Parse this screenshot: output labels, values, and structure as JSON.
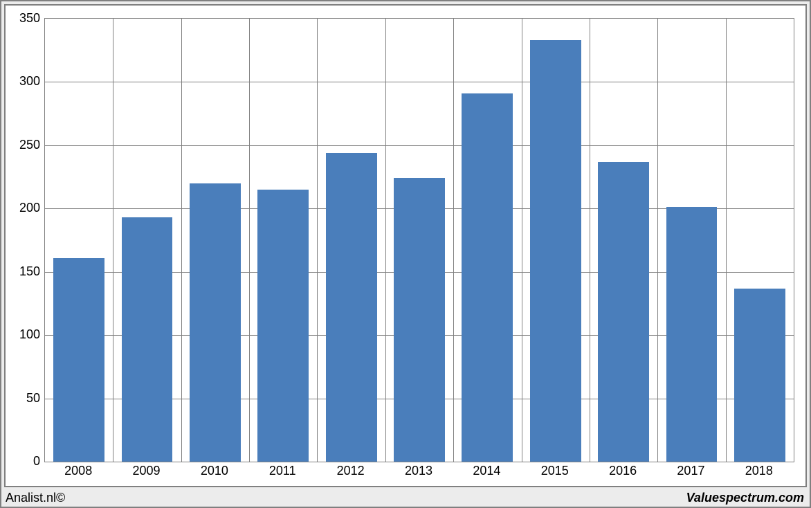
{
  "chart": {
    "type": "bar",
    "categories": [
      "2008",
      "2009",
      "2010",
      "2011",
      "2012",
      "2013",
      "2014",
      "2015",
      "2016",
      "2017",
      "2018"
    ],
    "values": [
      161,
      193,
      220,
      215,
      244,
      224,
      291,
      333,
      237,
      201,
      137
    ],
    "bar_color": "#4a7ebb",
    "ylim_min": 0,
    "ylim_max": 350,
    "ytick_step": 50,
    "ytick_labels": [
      "0",
      "50",
      "100",
      "150",
      "200",
      "250",
      "300",
      "350"
    ],
    "gap_ratio": 0.25,
    "grid_color": "#808080",
    "plot_background": "#ffffff",
    "outer_background": "#ececec",
    "border_color": "#808080",
    "tick_fontsize": 18,
    "tick_color": "#000000"
  },
  "footer": {
    "left": "Analist.nl©",
    "right": "Valuespectrum.com",
    "left_fontsize": 18,
    "right_fontsize": 18,
    "right_italic": true,
    "right_bold": true
  }
}
